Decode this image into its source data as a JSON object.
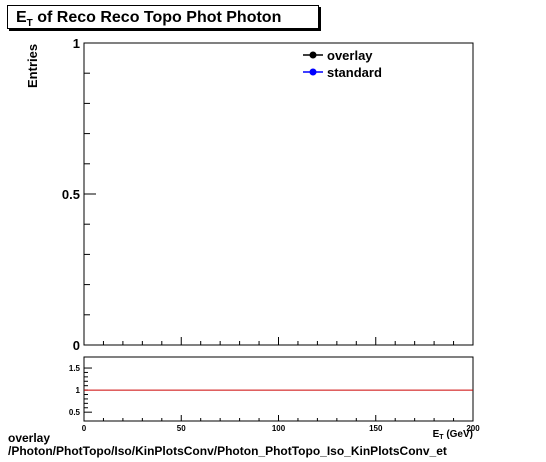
{
  "title": {
    "main": "E",
    "sub": "T",
    "rest": " of Reco Reco Topo Phot Photon"
  },
  "footer": {
    "line1": "overlay",
    "line2": "/Photon/PhotTopo/Iso/KinPlotsConv/Photon_PhotTopo_Iso_KinPlotsConv_et"
  },
  "chart_data": [
    {
      "type": "line",
      "ylabel": "Entries",
      "xlim": [
        0,
        200
      ],
      "ylim": [
        0,
        1
      ],
      "y_tick_labels": [
        "0",
        "0.5",
        "1"
      ],
      "legend": {
        "placement": "top-right",
        "entries": [
          {
            "name": "overlay",
            "color": "#000000"
          },
          {
            "name": "standard",
            "color": "#0000ff"
          }
        ]
      },
      "series": []
    },
    {
      "type": "line",
      "xlabel": "E_T (GeV)",
      "xlim": [
        0,
        200
      ],
      "ylim": [
        0.3,
        1.75
      ],
      "x_tick_labels": [
        "0",
        "50",
        "100",
        "150",
        "200"
      ],
      "y_tick_labels": [
        "0.5",
        "1",
        "1.5"
      ],
      "series": [
        {
          "x": [
            0,
            200
          ],
          "values": [
            1,
            1
          ],
          "color": "#cc0000"
        }
      ]
    }
  ]
}
